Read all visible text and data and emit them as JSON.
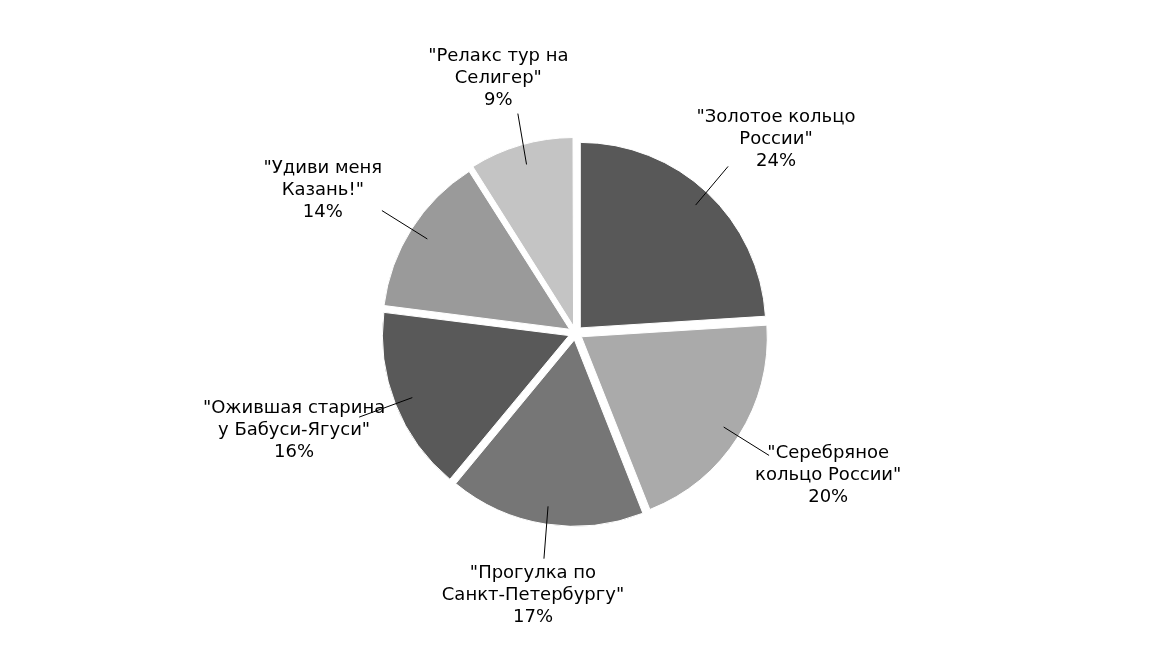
{
  "chart_data": {
    "type": "pie",
    "categories": [
      "\"Золотое кольцо России\"",
      "\"Серебряное кольцо России\"",
      "\"Прогулка по Санкт-Петербургу\"",
      "\"Ожившая старина у Бабуси-Ягуси\"",
      "\"Удиви меня Казань!\"",
      "\"Релакс тур на Селигер\""
    ],
    "values": [
      24,
      20,
      17,
      16,
      14,
      9
    ],
    "value_labels": [
      "24%",
      "20%",
      "17%",
      "16%",
      "14%",
      "9%"
    ],
    "colors": [
      "#585858",
      "#aaaaaa",
      "#767676",
      "#595959",
      "#9a9a9a",
      "#c4c4c4"
    ],
    "legend": false
  }
}
